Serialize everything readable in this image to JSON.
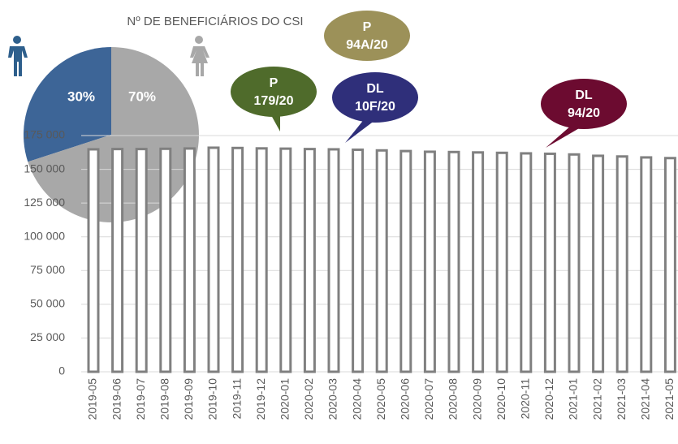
{
  "chart_data": {
    "type": "bar",
    "title": "Nº DE BENEFICIÁRIOS  DO CSI",
    "categories": [
      "2019-05",
      "2019-06",
      "2019-07",
      "2019-08",
      "2019-09",
      "2019-10",
      "2019-11",
      "2019-12",
      "2020-01",
      "2020-02",
      "2020-03",
      "2020-04",
      "2020-05",
      "2020-06",
      "2020-07",
      "2020-08",
      "2020-09",
      "2020-10",
      "2020-11",
      "2020-12",
      "2021-01",
      "2021-02",
      "2021-03",
      "2021-04",
      "2021-05"
    ],
    "values": [
      164800,
      165000,
      165000,
      165200,
      165400,
      166000,
      165800,
      165500,
      165300,
      165000,
      164800,
      164500,
      164000,
      163500,
      163000,
      162800,
      162500,
      162200,
      161800,
      161500,
      161000,
      160000,
      159500,
      158800,
      158300
    ],
    "color": "#ffffff",
    "edge_color": "#808080",
    "ylim": [
      0,
      175000
    ],
    "yticks": [
      0,
      {
        "value": 25000,
        "label": "25 000"
      },
      {
        "value": 50000,
        "label": "50 000"
      },
      {
        "value": 75000,
        "label": "75 000"
      },
      {
        "value": 100000,
        "label": "100 000"
      },
      {
        "value": 125000,
        "label": "125 000"
      },
      {
        "value": 150000,
        "label": "150 000"
      },
      {
        "value": 175000,
        "label": "175 000"
      }
    ],
    "grid": true,
    "pie": {
      "values": [
        30,
        70
      ],
      "value_labels": [
        "30%",
        "70%"
      ],
      "colors": [
        "#3d6597",
        "#a8a8a8"
      ]
    },
    "annotations": [
      {
        "lines": [
          "P",
          "179/20"
        ],
        "color": "#4f6b2b"
      },
      {
        "lines": [
          "P",
          "94A/20"
        ],
        "color": "#9c9159"
      },
      {
        "lines": [
          "DL",
          "10F/20"
        ],
        "color": "#2f2f7a"
      },
      {
        "lines": [
          "DL",
          "94/20"
        ],
        "color": "#6c0b30"
      }
    ]
  }
}
